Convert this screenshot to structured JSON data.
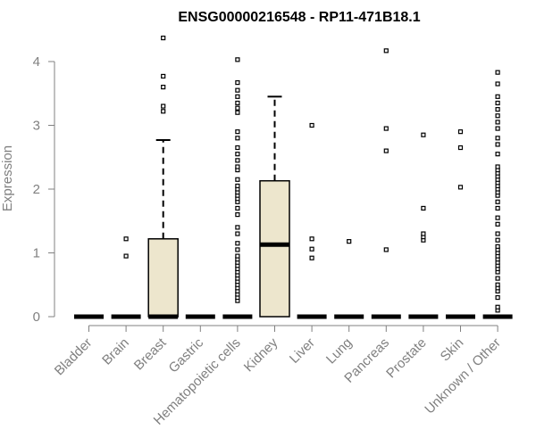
{
  "chart_data": {
    "type": "boxplot",
    "title": "ENSG00000216548 - RP11-471B18.1",
    "xlabel": "",
    "ylabel": "Expression",
    "ylim": [
      0,
      4.3
    ],
    "yticks": [
      0,
      1,
      2,
      3,
      4
    ],
    "categories": [
      "Bladder",
      "Brain",
      "Breast",
      "Gastric",
      "Hematopoietic cells",
      "Kidney",
      "Liver",
      "Lung",
      "Pancreas",
      "Prostate",
      "Skin",
      "Unknown / Other"
    ],
    "box_fill": "#ede6cd",
    "boxes": [
      {
        "q1": 0,
        "median": 0,
        "q3": 0,
        "whisker_low": 0,
        "whisker_high": 0,
        "outliers": []
      },
      {
        "q1": 0,
        "median": 0,
        "q3": 0,
        "whisker_low": 0,
        "whisker_high": 0,
        "outliers": [
          0.95,
          1.22
        ]
      },
      {
        "q1": 0,
        "median": 0,
        "q3": 1.22,
        "whisker_low": 0,
        "whisker_high": 2.77,
        "outliers": [
          3.22,
          3.3,
          3.6,
          3.77,
          4.37
        ]
      },
      {
        "q1": 0,
        "median": 0,
        "q3": 0,
        "whisker_low": 0,
        "whisker_high": 0,
        "outliers": []
      },
      {
        "q1": 0,
        "median": 0,
        "q3": 0,
        "whisker_low": 0,
        "whisker_high": 0,
        "outliers": [
          0.25,
          0.3,
          0.35,
          0.4,
          0.45,
          0.5,
          0.55,
          0.6,
          0.65,
          0.7,
          0.75,
          0.8,
          0.85,
          0.9,
          0.95,
          1.05,
          1.15,
          1.3,
          1.4,
          1.6,
          1.7,
          1.8,
          1.85,
          1.9,
          1.95,
          2.0,
          2.05,
          2.15,
          2.3,
          2.35,
          2.45,
          2.55,
          2.65,
          2.8,
          2.9,
          3.2,
          3.27,
          3.35,
          3.45,
          3.55,
          3.67,
          4.03
        ]
      },
      {
        "q1": 0,
        "median": 1.13,
        "q3": 2.13,
        "whisker_low": 0,
        "whisker_high": 3.45,
        "outliers": []
      },
      {
        "q1": 0,
        "median": 0,
        "q3": 0,
        "whisker_low": 0,
        "whisker_high": 0,
        "outliers": [
          0.92,
          1.06,
          1.22,
          3.0
        ]
      },
      {
        "q1": 0,
        "median": 0,
        "q3": 0,
        "whisker_low": 0,
        "whisker_high": 0,
        "outliers": [
          1.18
        ]
      },
      {
        "q1": 0,
        "median": 0,
        "q3": 0,
        "whisker_low": 0,
        "whisker_high": 0,
        "outliers": [
          1.05,
          2.6,
          2.95,
          4.17
        ]
      },
      {
        "q1": 0,
        "median": 0,
        "q3": 0,
        "whisker_low": 0,
        "whisker_high": 0,
        "outliers": [
          1.2,
          1.25,
          1.3,
          1.7,
          2.85
        ]
      },
      {
        "q1": 0,
        "median": 0,
        "q3": 0,
        "whisker_low": 0,
        "whisker_high": 0,
        "outliers": [
          2.03,
          2.65,
          2.9
        ]
      },
      {
        "q1": 0,
        "median": 0,
        "q3": 0,
        "whisker_low": 0,
        "whisker_high": 0,
        "outliers": [
          0.1,
          0.15,
          0.3,
          0.4,
          0.45,
          0.5,
          0.6,
          0.7,
          0.75,
          0.8,
          0.85,
          0.9,
          0.95,
          1.0,
          1.05,
          1.1,
          1.2,
          1.3,
          1.45,
          1.55,
          1.7,
          1.8,
          1.9,
          1.95,
          2.0,
          2.05,
          2.1,
          2.15,
          2.2,
          2.25,
          2.3,
          2.35,
          2.55,
          2.7,
          2.8,
          2.95,
          3.05,
          3.15,
          3.25,
          3.35,
          3.45,
          3.65,
          3.83
        ]
      }
    ]
  }
}
